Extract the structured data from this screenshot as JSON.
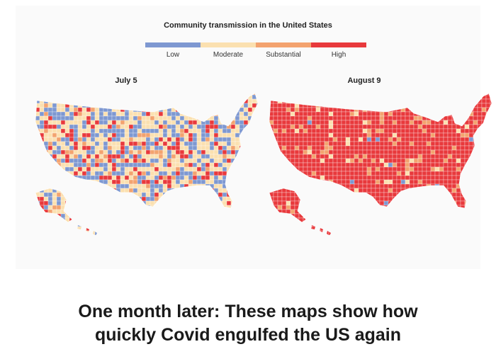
{
  "legend": {
    "title": "Community transmission in the United States",
    "levels": [
      {
        "label": "Low",
        "color": "#7e98d1"
      },
      {
        "label": "Moderate",
        "color": "#fbe0b0"
      },
      {
        "label": "Substantial",
        "color": "#f3a36f"
      },
      {
        "label": "High",
        "color": "#e8393c"
      }
    ]
  },
  "maps": [
    {
      "title": "July 5",
      "mix": [
        0.3,
        0.45,
        0.1,
        0.15
      ]
    },
    {
      "title": "August 9",
      "mix": [
        0.01,
        0.04,
        0.1,
        0.85
      ]
    }
  ],
  "headline": {
    "line1": "One month later: These maps show how",
    "line2": "quickly Covid engulfed the US again"
  }
}
